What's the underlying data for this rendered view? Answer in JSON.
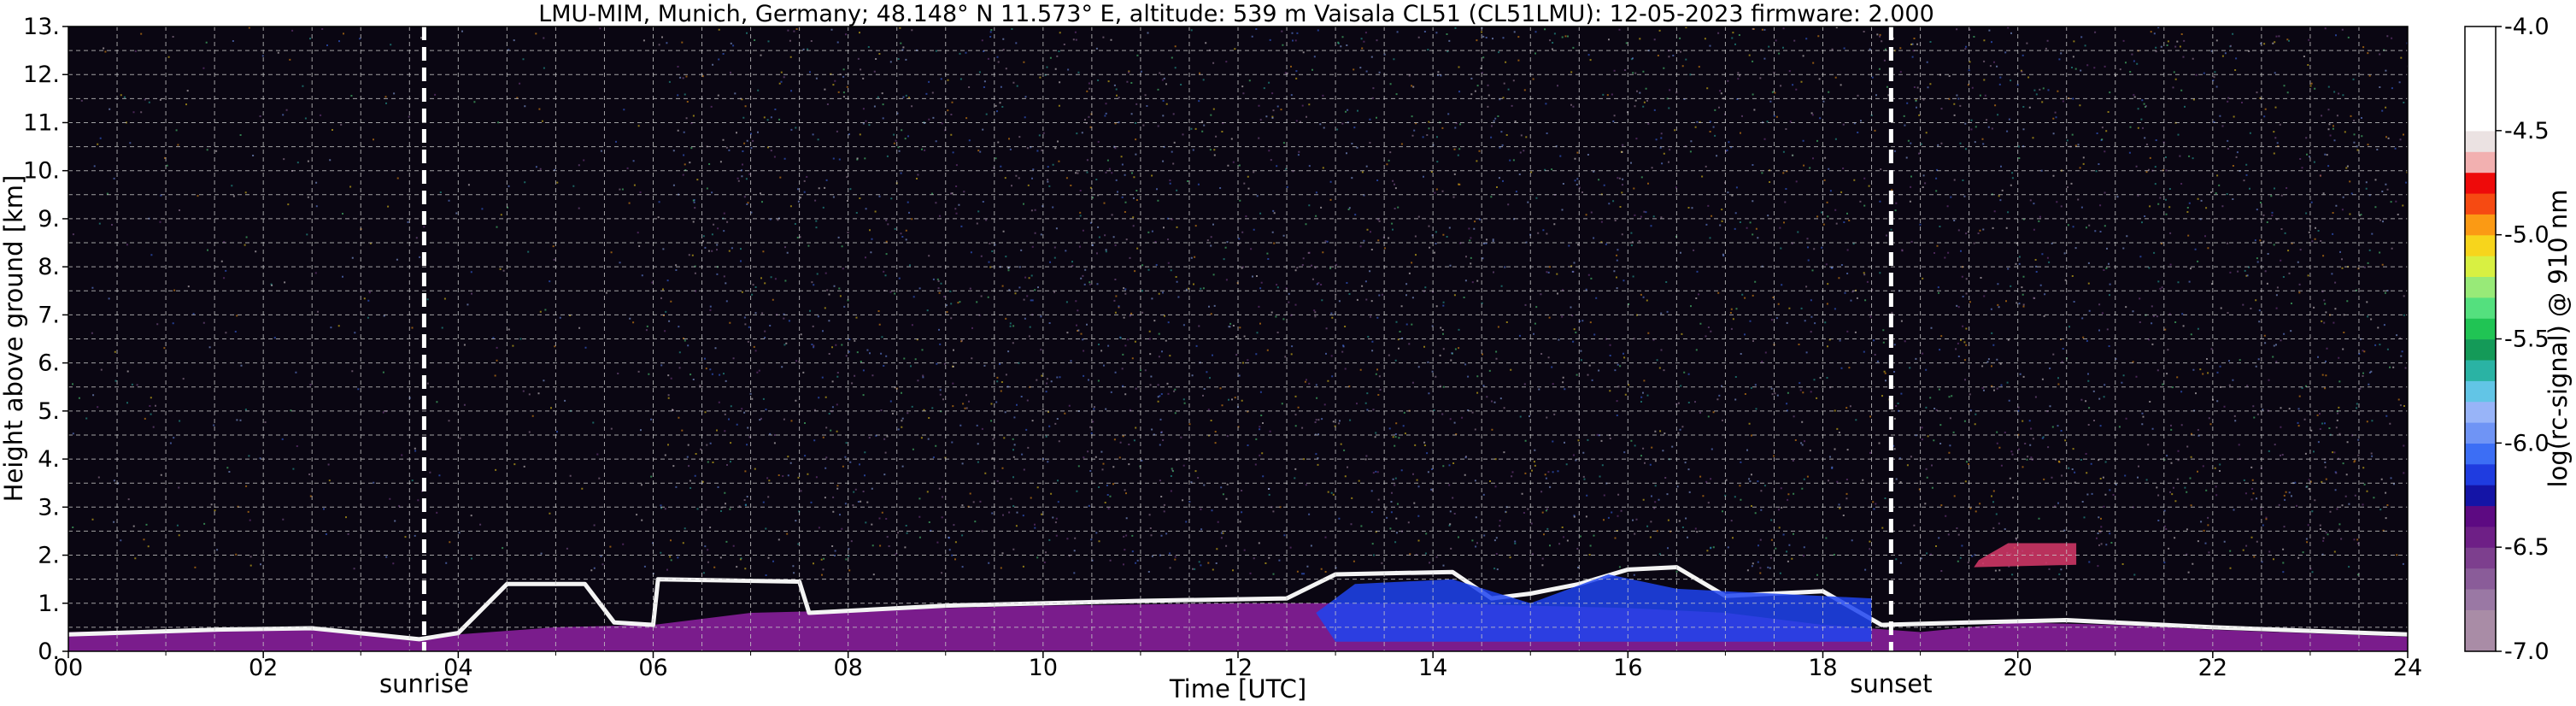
{
  "chart_data": {
    "type": "heatmap",
    "title": "LMU-MIM, Munich, Germany; 48.148° N 11.573° E, altitude: 539 m    Vaisala CL51 (CL51LMU): 12-05-2023    firmware: 2.000",
    "xlabel": "Time [UTC]",
    "ylabel": "Height above ground [km]",
    "xlim": [
      0,
      24
    ],
    "ylim": [
      0,
      13
    ],
    "x_ticks": [
      {
        "v": 0,
        "label": "00"
      },
      {
        "v": 2,
        "label": "02"
      },
      {
        "v": 4,
        "label": "04"
      },
      {
        "v": 6,
        "label": "06"
      },
      {
        "v": 8,
        "label": "08"
      },
      {
        "v": 10,
        "label": "10"
      },
      {
        "v": 12,
        "label": "12"
      },
      {
        "v": 14,
        "label": "14"
      },
      {
        "v": 16,
        "label": "16"
      },
      {
        "v": 18,
        "label": "18"
      },
      {
        "v": 20,
        "label": "20"
      },
      {
        "v": 22,
        "label": "22"
      },
      {
        "v": 24,
        "label": "24"
      }
    ],
    "y_ticks": [
      {
        "v": 0,
        "label": "0."
      },
      {
        "v": 1,
        "label": "1."
      },
      {
        "v": 2,
        "label": "2."
      },
      {
        "v": 3,
        "label": "3."
      },
      {
        "v": 4,
        "label": "4."
      },
      {
        "v": 5,
        "label": "5."
      },
      {
        "v": 6,
        "label": "6."
      },
      {
        "v": 7,
        "label": "7."
      },
      {
        "v": 8,
        "label": "8."
      },
      {
        "v": 9,
        "label": "9."
      },
      {
        "v": 10,
        "label": "10."
      },
      {
        "v": 11,
        "label": "11."
      },
      {
        "v": 12,
        "label": "12."
      },
      {
        "v": 13,
        "label": "13."
      }
    ],
    "grid": true,
    "annotations": [
      {
        "x": 3.65,
        "label": "sunrise"
      },
      {
        "x": 18.7,
        "label": "sunset"
      }
    ],
    "colorbar": {
      "label": "log(rc-signal) @ 910 nm",
      "range": [
        -7.0,
        -4.0
      ],
      "ticks": [
        {
          "v": -4.0,
          "label": "-4.0"
        },
        {
          "v": -4.5,
          "label": "-4.5"
        },
        {
          "v": -5.0,
          "label": "-5.0"
        },
        {
          "v": -5.5,
          "label": "-5.5"
        },
        {
          "v": -6.0,
          "label": "-6.0"
        },
        {
          "v": -6.5,
          "label": "-6.5"
        },
        {
          "v": -7.0,
          "label": "-7.0"
        }
      ],
      "levels": [
        {
          "lo": -7.0,
          "hi": -6.8,
          "color": "#a98ca6"
        },
        {
          "lo": -6.8,
          "hi": -6.7,
          "color": "#9a78a4"
        },
        {
          "lo": -6.7,
          "hi": -6.6,
          "color": "#8a5c99"
        },
        {
          "lo": -6.6,
          "hi": -6.5,
          "color": "#7d3f8e"
        },
        {
          "lo": -6.5,
          "hi": -6.4,
          "color": "#6e1f86"
        },
        {
          "lo": -6.4,
          "hi": -6.3,
          "color": "#5d0a82"
        },
        {
          "lo": -6.3,
          "hi": -6.2,
          "color": "#1414a6"
        },
        {
          "lo": -6.2,
          "hi": -6.1,
          "color": "#1f3ce0"
        },
        {
          "lo": -6.1,
          "hi": -6.0,
          "color": "#3c6ef5"
        },
        {
          "lo": -6.0,
          "hi": -5.9,
          "color": "#6f94f5"
        },
        {
          "lo": -5.9,
          "hi": -5.8,
          "color": "#98b4f8"
        },
        {
          "lo": -5.8,
          "hi": -5.7,
          "color": "#62c5e6"
        },
        {
          "lo": -5.7,
          "hi": -5.6,
          "color": "#2ab3a4"
        },
        {
          "lo": -5.6,
          "hi": -5.5,
          "color": "#149a58"
        },
        {
          "lo": -5.5,
          "hi": -5.4,
          "color": "#20c454"
        },
        {
          "lo": -5.4,
          "hi": -5.3,
          "color": "#54e07e"
        },
        {
          "lo": -5.3,
          "hi": -5.2,
          "color": "#98ea78"
        },
        {
          "lo": -5.2,
          "hi": -5.1,
          "color": "#d8f042"
        },
        {
          "lo": -5.1,
          "hi": -5.0,
          "color": "#f7d51c"
        },
        {
          "lo": -5.0,
          "hi": -4.9,
          "color": "#fb9a14"
        },
        {
          "lo": -4.9,
          "hi": -4.8,
          "color": "#f64a12"
        },
        {
          "lo": -4.8,
          "hi": -4.7,
          "color": "#ee0a0a"
        },
        {
          "lo": -4.7,
          "hi": -4.6,
          "color": "#f2b0b0"
        },
        {
          "lo": -4.6,
          "hi": -4.5,
          "color": "#ebe2e2"
        },
        {
          "lo": -4.5,
          "hi": -4.0,
          "color": "#ffffff"
        }
      ]
    },
    "background_color": "#0a0612",
    "layers": [
      {
        "kind": "boundary_layer",
        "color": "#7a1c8c",
        "top": [
          [
            0,
            0.4
          ],
          [
            1,
            0.45
          ],
          [
            2,
            0.5
          ],
          [
            3,
            0.4
          ],
          [
            3.65,
            0.25
          ],
          [
            4,
            0.35
          ],
          [
            5,
            0.5
          ],
          [
            6,
            0.55
          ],
          [
            7,
            0.8
          ],
          [
            8,
            0.85
          ],
          [
            10,
            0.95
          ],
          [
            12,
            1.0
          ],
          [
            14,
            1.0
          ],
          [
            16,
            0.9
          ],
          [
            17,
            0.8
          ],
          [
            18,
            0.55
          ],
          [
            19,
            0.4
          ],
          [
            20,
            0.6
          ],
          [
            21,
            0.55
          ],
          [
            22,
            0.45
          ],
          [
            24,
            0.3
          ]
        ]
      },
      {
        "kind": "cloud_edge",
        "color": "#f4f4f4",
        "points": [
          [
            0,
            0.35
          ],
          [
            1.5,
            0.45
          ],
          [
            2.5,
            0.48
          ],
          [
            3.6,
            0.25
          ],
          [
            4,
            0.38
          ],
          [
            4.5,
            1.4
          ],
          [
            5.3,
            1.4
          ],
          [
            5.6,
            0.6
          ],
          [
            6,
            0.55
          ],
          [
            6.05,
            1.5
          ],
          [
            7.5,
            1.45
          ],
          [
            7.6,
            0.8
          ],
          [
            9,
            0.95
          ],
          [
            11,
            1.05
          ],
          [
            12.5,
            1.1
          ],
          [
            13,
            1.6
          ],
          [
            14.2,
            1.65
          ],
          [
            14.6,
            1.1
          ],
          [
            15,
            1.2
          ],
          [
            15.5,
            1.4
          ],
          [
            16,
            1.7
          ],
          [
            16.5,
            1.75
          ],
          [
            17,
            1.15
          ],
          [
            18,
            1.25
          ],
          [
            18.6,
            0.55
          ],
          [
            19.5,
            0.6
          ],
          [
            20.5,
            0.65
          ],
          [
            22,
            0.5
          ],
          [
            24,
            0.35
          ]
        ]
      },
      {
        "kind": "cloud_patch",
        "color": "#1e44f0",
        "points": [
          [
            13,
            0.2
          ],
          [
            14,
            0.2
          ],
          [
            15,
            0.2
          ],
          [
            16.5,
            0.2
          ],
          [
            18.5,
            0.2
          ],
          [
            18.5,
            1.1
          ],
          [
            17.5,
            1.2
          ],
          [
            16.5,
            1.3
          ],
          [
            15.8,
            1.6
          ],
          [
            15,
            1.0
          ],
          [
            14.2,
            1.5
          ],
          [
            13.2,
            1.4
          ],
          [
            12.8,
            0.8
          ]
        ]
      },
      {
        "kind": "cloud_patch",
        "color": "#d83a6a",
        "points": [
          [
            19.55,
            1.75
          ],
          [
            20.6,
            1.8
          ],
          [
            20.6,
            2.25
          ],
          [
            19.9,
            2.25
          ],
          [
            19.6,
            1.9
          ]
        ]
      }
    ]
  }
}
